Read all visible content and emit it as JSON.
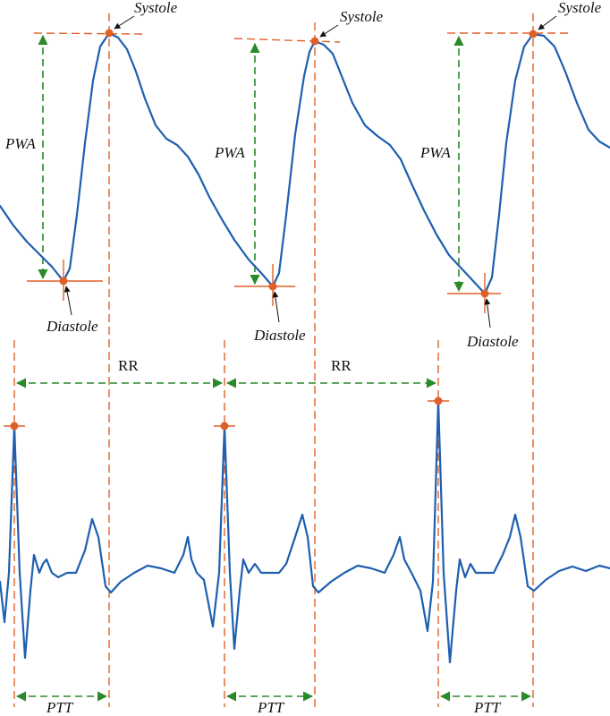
{
  "beats": [
    {
      "systole": "Systole",
      "diastole": "Diastole",
      "pwa": "PWA",
      "ptt": "PTT"
    },
    {
      "systole": "Systole",
      "diastole": "Diastole",
      "pwa": "PWA",
      "ptt": "PTT"
    },
    {
      "systole": "Systole",
      "diastole": "Diastole",
      "pwa": "PWA",
      "ptt": "PTT"
    }
  ],
  "intervals": [
    {
      "label": "RR"
    },
    {
      "label": "RR"
    }
  ]
}
